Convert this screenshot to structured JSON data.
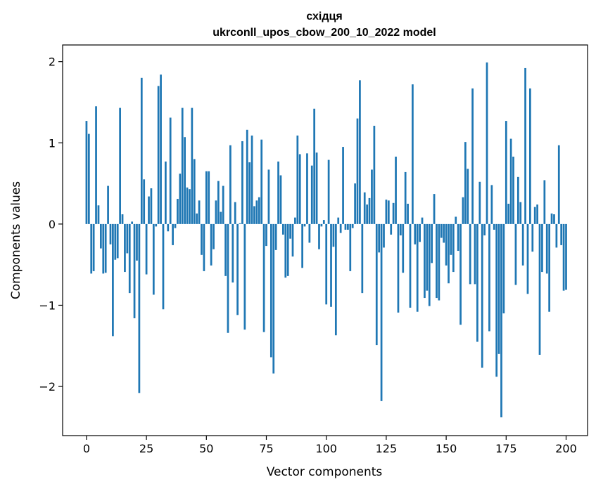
{
  "chart_data": {
    "type": "bar",
    "title_lines": [
      "східця",
      "ukrconll_upos_cbow_200_10_2022 model"
    ],
    "xlabel": "Vector components",
    "ylabel": "Components values",
    "xlim": [
      -9.95,
      208.95
    ],
    "ylim": [
      -2.605,
      2.205
    ],
    "xticks": [
      0,
      25,
      50,
      75,
      100,
      125,
      150,
      175,
      200
    ],
    "xtick_labels": [
      "0",
      "25",
      "50",
      "75",
      "100",
      "125",
      "150",
      "175",
      "200"
    ],
    "yticks": [
      -2,
      -1,
      0,
      1,
      2
    ],
    "ytick_labels": [
      "−2",
      "−1",
      "0",
      "1",
      "2"
    ],
    "bar_color": "#1f77b4",
    "grid": false,
    "values": [
      1.27,
      1.11,
      -0.61,
      -0.58,
      1.45,
      0.23,
      -0.3,
      -0.61,
      -0.6,
      0.47,
      -0.25,
      -1.38,
      -0.44,
      -0.42,
      1.43,
      0.12,
      -0.59,
      -0.36,
      -0.85,
      0.03,
      -1.16,
      -0.45,
      -2.08,
      1.8,
      0.55,
      -0.62,
      0.34,
      0.44,
      -0.87,
      -0.03,
      1.7,
      1.84,
      -1.05,
      0.77,
      -0.09,
      1.31,
      -0.26,
      -0.05,
      0.31,
      0.62,
      1.43,
      1.07,
      0.45,
      0.43,
      1.43,
      0.8,
      0.13,
      0.29,
      -0.38,
      -0.58,
      0.65,
      0.65,
      -0.51,
      -0.31,
      0.29,
      0.53,
      0.15,
      0.47,
      -0.64,
      -1.34,
      0.97,
      -0.72,
      0.27,
      -1.12,
      0.01,
      1.02,
      -1.3,
      1.16,
      0.76,
      1.09,
      0.22,
      0.29,
      0.33,
      1.04,
      -1.33,
      -0.27,
      0.67,
      -1.64,
      -1.84,
      -0.32,
      0.77,
      0.6,
      -0.13,
      -0.66,
      -0.64,
      -0.18,
      -0.4,
      0.08,
      1.09,
      0.86,
      -0.54,
      -0.03,
      0.87,
      -0.23,
      0.72,
      1.42,
      0.88,
      -0.31,
      -0.03,
      0.05,
      -0.99,
      0.79,
      -1.02,
      -0.28,
      -1.37,
      0.08,
      -0.11,
      0.95,
      -0.07,
      -0.07,
      -0.58,
      -0.05,
      0.5,
      1.3,
      1.77,
      -0.85,
      0.39,
      0.24,
      0.32,
      0.67,
      1.21,
      -1.49,
      -0.35,
      -2.18,
      -0.29,
      0.3,
      0.29,
      -0.13,
      0.26,
      0.83,
      -1.09,
      -0.14,
      -0.6,
      0.64,
      0.25,
      -1.03,
      1.72,
      -0.25,
      -1.08,
      -0.22,
      0.08,
      -0.91,
      -0.82,
      -1.01,
      -0.48,
      0.37,
      -0.91,
      -0.94,
      -0.17,
      -0.23,
      -0.51,
      -0.73,
      -0.38,
      -0.59,
      0.09,
      -0.33,
      -1.24,
      0.33,
      1.01,
      0.68,
      -0.74,
      1.67,
      -0.74,
      -1.45,
      0.52,
      -1.77,
      -0.14,
      1.99,
      -1.32,
      0.48,
      -0.07,
      -1.88,
      -1.6,
      -2.38,
      -1.1,
      1.27,
      0.25,
      1.05,
      0.83,
      -0.75,
      0.58,
      0.27,
      -0.51,
      1.92,
      -0.86,
      1.67,
      -0.34,
      0.21,
      0.24,
      -1.61,
      -0.59,
      0.54,
      -0.61,
      -1.08,
      0.13,
      0.12,
      -0.29,
      0.97,
      -0.26,
      -0.82,
      -0.81
    ]
  }
}
